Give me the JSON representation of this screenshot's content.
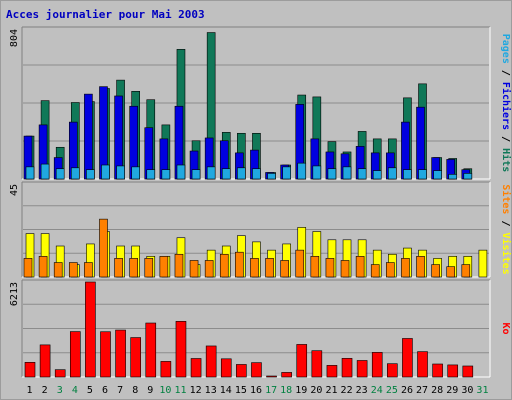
{
  "title": "Acces journalier pour Mai 2003",
  "colors": {
    "hits": "#107858",
    "files": "#0000e0",
    "pages": "#20a8e0",
    "visits": "#ffff00",
    "sites": "#ff8000",
    "kbytes": "#ff0000",
    "weekend": "#008040",
    "panel": "#c0c0c0",
    "grid": "#8c8c8c"
  },
  "chart_data": [
    {
      "type": "bar",
      "ylim": [
        0,
        804
      ],
      "ytick_label": "804",
      "legend": [
        "Pages",
        "Fichiers",
        "Hits"
      ],
      "categories": [
        "1",
        "2",
        "3",
        "4",
        "5",
        "6",
        "7",
        "8",
        "9",
        "10",
        "11",
        "12",
        "13",
        "14",
        "15",
        "16",
        "17",
        "18",
        "19",
        "20",
        "21",
        "22",
        "23",
        "24",
        "25",
        "26",
        "27",
        "28",
        "29",
        "30",
        "31"
      ],
      "weekend_days": [
        3,
        4,
        10,
        11,
        17,
        18,
        24,
        25,
        31
      ],
      "series": [
        {
          "name": "Hits",
          "values": [
            230,
            420,
            170,
            410,
            415,
            485,
            530,
            470,
            425,
            290,
            695,
            205,
            785,
            250,
            245,
            245,
            35,
            75,
            450,
            440,
            200,
            145,
            255,
            215,
            215,
            435,
            510,
            115,
            110,
            55,
            0
          ]
        },
        {
          "name": "Fichiers",
          "values": [
            230,
            290,
            115,
            305,
            455,
            495,
            445,
            390,
            275,
            215,
            390,
            150,
            220,
            205,
            140,
            155,
            35,
            75,
            400,
            215,
            145,
            135,
            175,
            140,
            140,
            305,
            385,
            115,
            105,
            50,
            0
          ]
        },
        {
          "name": "Pages",
          "values": [
            65,
            80,
            55,
            60,
            50,
            75,
            70,
            65,
            50,
            50,
            75,
            50,
            65,
            55,
            60,
            55,
            30,
            65,
            85,
            70,
            55,
            65,
            55,
            45,
            60,
            50,
            50,
            45,
            25,
            30,
            0
          ]
        }
      ]
    },
    {
      "type": "bar",
      "ylim": [
        0,
        45
      ],
      "ytick_label": "45",
      "legend": [
        "Sites",
        "/",
        "Visites"
      ],
      "series": [
        {
          "name": "Visites",
          "values": [
            21,
            21,
            15,
            6,
            16,
            22,
            15,
            15,
            10,
            10,
            19,
            6,
            13,
            15,
            20,
            17,
            13,
            16,
            24,
            22,
            18,
            18,
            18,
            13,
            11,
            14,
            13,
            9,
            10,
            10,
            13
          ]
        },
        {
          "name": "Sites",
          "values": [
            9,
            10,
            7,
            7,
            7,
            28,
            9,
            9,
            9,
            10,
            11,
            8,
            8,
            11,
            12,
            9,
            9,
            8,
            13,
            10,
            9,
            8,
            10,
            6,
            7,
            9,
            10,
            6,
            5,
            6,
            0
          ]
        }
      ]
    },
    {
      "type": "bar",
      "ylim": [
        0,
        6213
      ],
      "ytick_label": "6213",
      "legend": [
        "Ko"
      ],
      "series": [
        {
          "name": "Ko",
          "values": [
            960,
            2100,
            480,
            2970,
            6213,
            2960,
            3070,
            2580,
            3530,
            1020,
            3640,
            1210,
            2030,
            1190,
            820,
            940,
            60,
            300,
            2130,
            1720,
            760,
            1220,
            1080,
            1610,
            870,
            2520,
            1660,
            850,
            790,
            720,
            0
          ]
        }
      ]
    }
  ]
}
